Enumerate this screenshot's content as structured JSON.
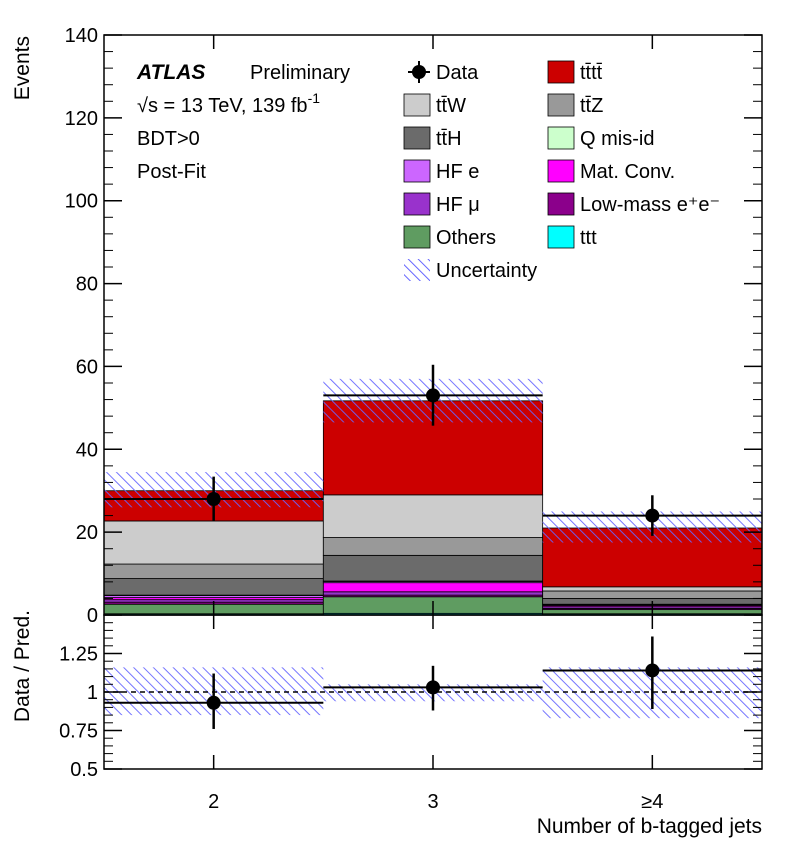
{
  "chart_data": {
    "type": "bar",
    "stacked": true,
    "categories": [
      "2",
      "3",
      "≥4"
    ],
    "xlabel": "Number of b-tagged jets",
    "ylabel": "Events",
    "ylim": [
      0,
      140
    ],
    "yticks": [
      "0",
      "20",
      "40",
      "60",
      "80",
      "100",
      "120",
      "140"
    ],
    "ratio": {
      "ylabel": "Data / Pred.",
      "ylim": [
        0.5,
        1.5
      ],
      "yticks": [
        "0.5",
        "0.75",
        "1",
        "1.25"
      ],
      "reference": 1.0,
      "values": [
        0.93,
        1.03,
        1.14
      ],
      "err_low": [
        0.17,
        0.15,
        0.25
      ],
      "err_high": [
        0.19,
        0.14,
        0.22
      ],
      "band_low": [
        0.85,
        0.94,
        0.83
      ],
      "band_high": [
        1.16,
        1.05,
        1.16
      ]
    },
    "annotations": {
      "atlas": "ATLAS",
      "status": "Preliminary",
      "energy": "√s = 13 TeV, 139 fb",
      "energy_sup": "-1",
      "selection": "BDT>0",
      "fit": "Post-Fit"
    },
    "series": [
      {
        "name": "ttt",
        "color": "#00ffff",
        "values": [
          0.3,
          0.4,
          0.3
        ]
      },
      {
        "name": "Others",
        "color": "#5f9c61",
        "values": [
          2.3,
          4.0,
          1.0
        ]
      },
      {
        "name": "Low-mass e⁺e⁻",
        "color": "#8b008b",
        "values": [
          0.5,
          0.4,
          0.3
        ]
      },
      {
        "name": "HF μ",
        "color": "#9932cc",
        "values": [
          0.6,
          0.8,
          0.4
        ]
      },
      {
        "name": "Mat. Conv.",
        "color": "#ff00ff",
        "values": [
          0.5,
          2.2,
          0.3
        ]
      },
      {
        "name": "HF e",
        "color": "#cc66ff",
        "values": [
          0.5,
          0.3,
          0.2
        ]
      },
      {
        "name": "Q mis-id",
        "color": "#ccffcc",
        "values": [
          0.1,
          0.1,
          0.1
        ]
      },
      {
        "name": "tt̄H",
        "color": "#6b6b6b",
        "values": [
          4.0,
          6.2,
          1.4
        ]
      },
      {
        "name": "tt̄Z",
        "color": "#999999",
        "values": [
          3.5,
          4.3,
          1.8
        ]
      },
      {
        "name": "tt̄W",
        "color": "#cccccc",
        "values": [
          10.4,
          10.3,
          1.0
        ]
      },
      {
        "name": "tt̄tt̄",
        "color": "#cc0000",
        "values": [
          7.3,
          22.7,
          14.2
        ]
      }
    ],
    "total": [
      30.0,
      51.7,
      21.0
    ],
    "uncertainty": {
      "name": "Uncertainty",
      "color": "#6666ff",
      "low": [
        26.0,
        46.5,
        17.5
      ],
      "high": [
        34.5,
        57.0,
        25.0
      ]
    },
    "data": {
      "name": "Data",
      "values": [
        28,
        53,
        24
      ],
      "err_low": [
        5.2,
        7.3,
        4.9
      ],
      "err_high": [
        5.4,
        7.4,
        4.9
      ]
    },
    "legend_order": [
      "Data",
      "tt̄tt̄",
      "tt̄W",
      "tt̄Z",
      "tt̄H",
      "Q mis-id",
      "HF e",
      "Mat. Conv.",
      "HF μ",
      "Low-mass e⁺e⁻",
      "Others",
      "ttt",
      "Uncertainty"
    ],
    "legend_position": "top-right",
    "grid": false
  }
}
